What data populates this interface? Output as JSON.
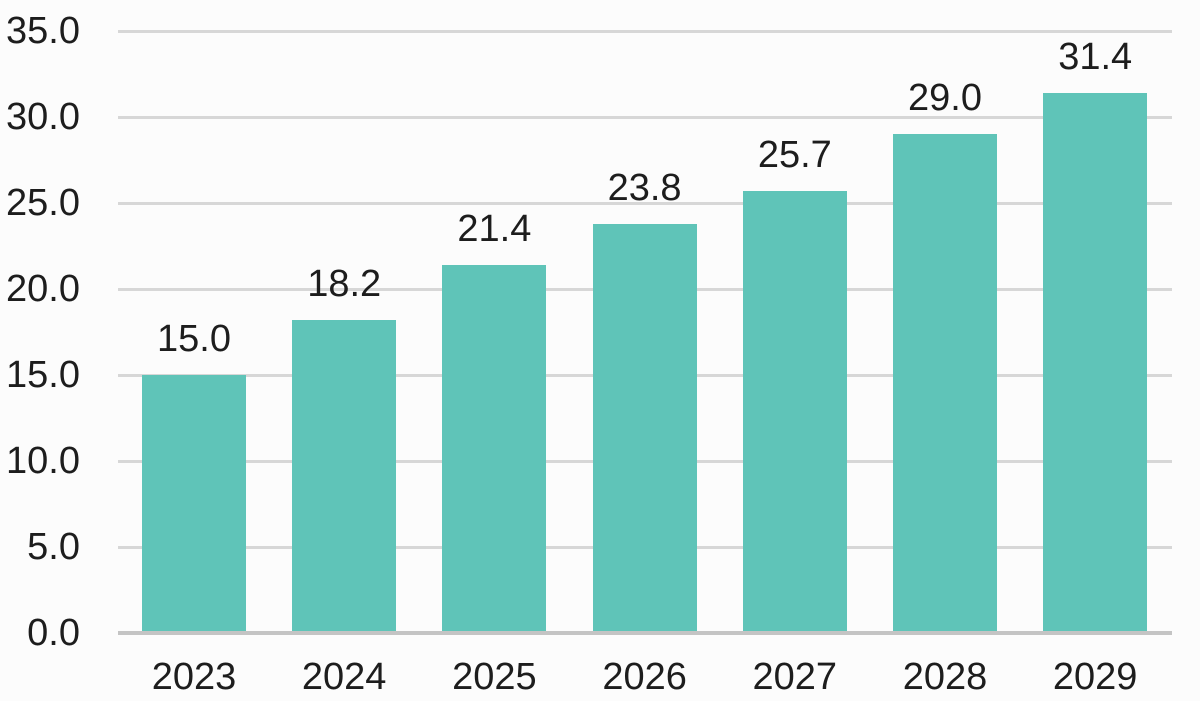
{
  "chart_data": {
    "type": "bar",
    "title": "",
    "xlabel": "",
    "ylabel": "",
    "categories": [
      "2023",
      "2024",
      "2025",
      "2026",
      "2027",
      "2028",
      "2029"
    ],
    "values": [
      15.0,
      18.2,
      21.4,
      23.8,
      25.7,
      29.0,
      31.4
    ],
    "value_labels": [
      "15.0",
      "18.2",
      "21.4",
      "23.8",
      "25.7",
      "29.0",
      "31.4"
    ],
    "ylim": [
      0,
      35
    ],
    "y_tick_interval": 5,
    "y_tick_labels": [
      "0.0",
      "5.0",
      "10.0",
      "15.0",
      "20.0",
      "25.0",
      "30.0",
      "35.0"
    ],
    "grid": true,
    "legend": false,
    "colors": {
      "bar": "#5fc4b8",
      "gridline": "#d7d7d7",
      "axis_line": "#c4c4c4",
      "text": "#1d1d1d",
      "background": "#fcfcfc"
    }
  }
}
